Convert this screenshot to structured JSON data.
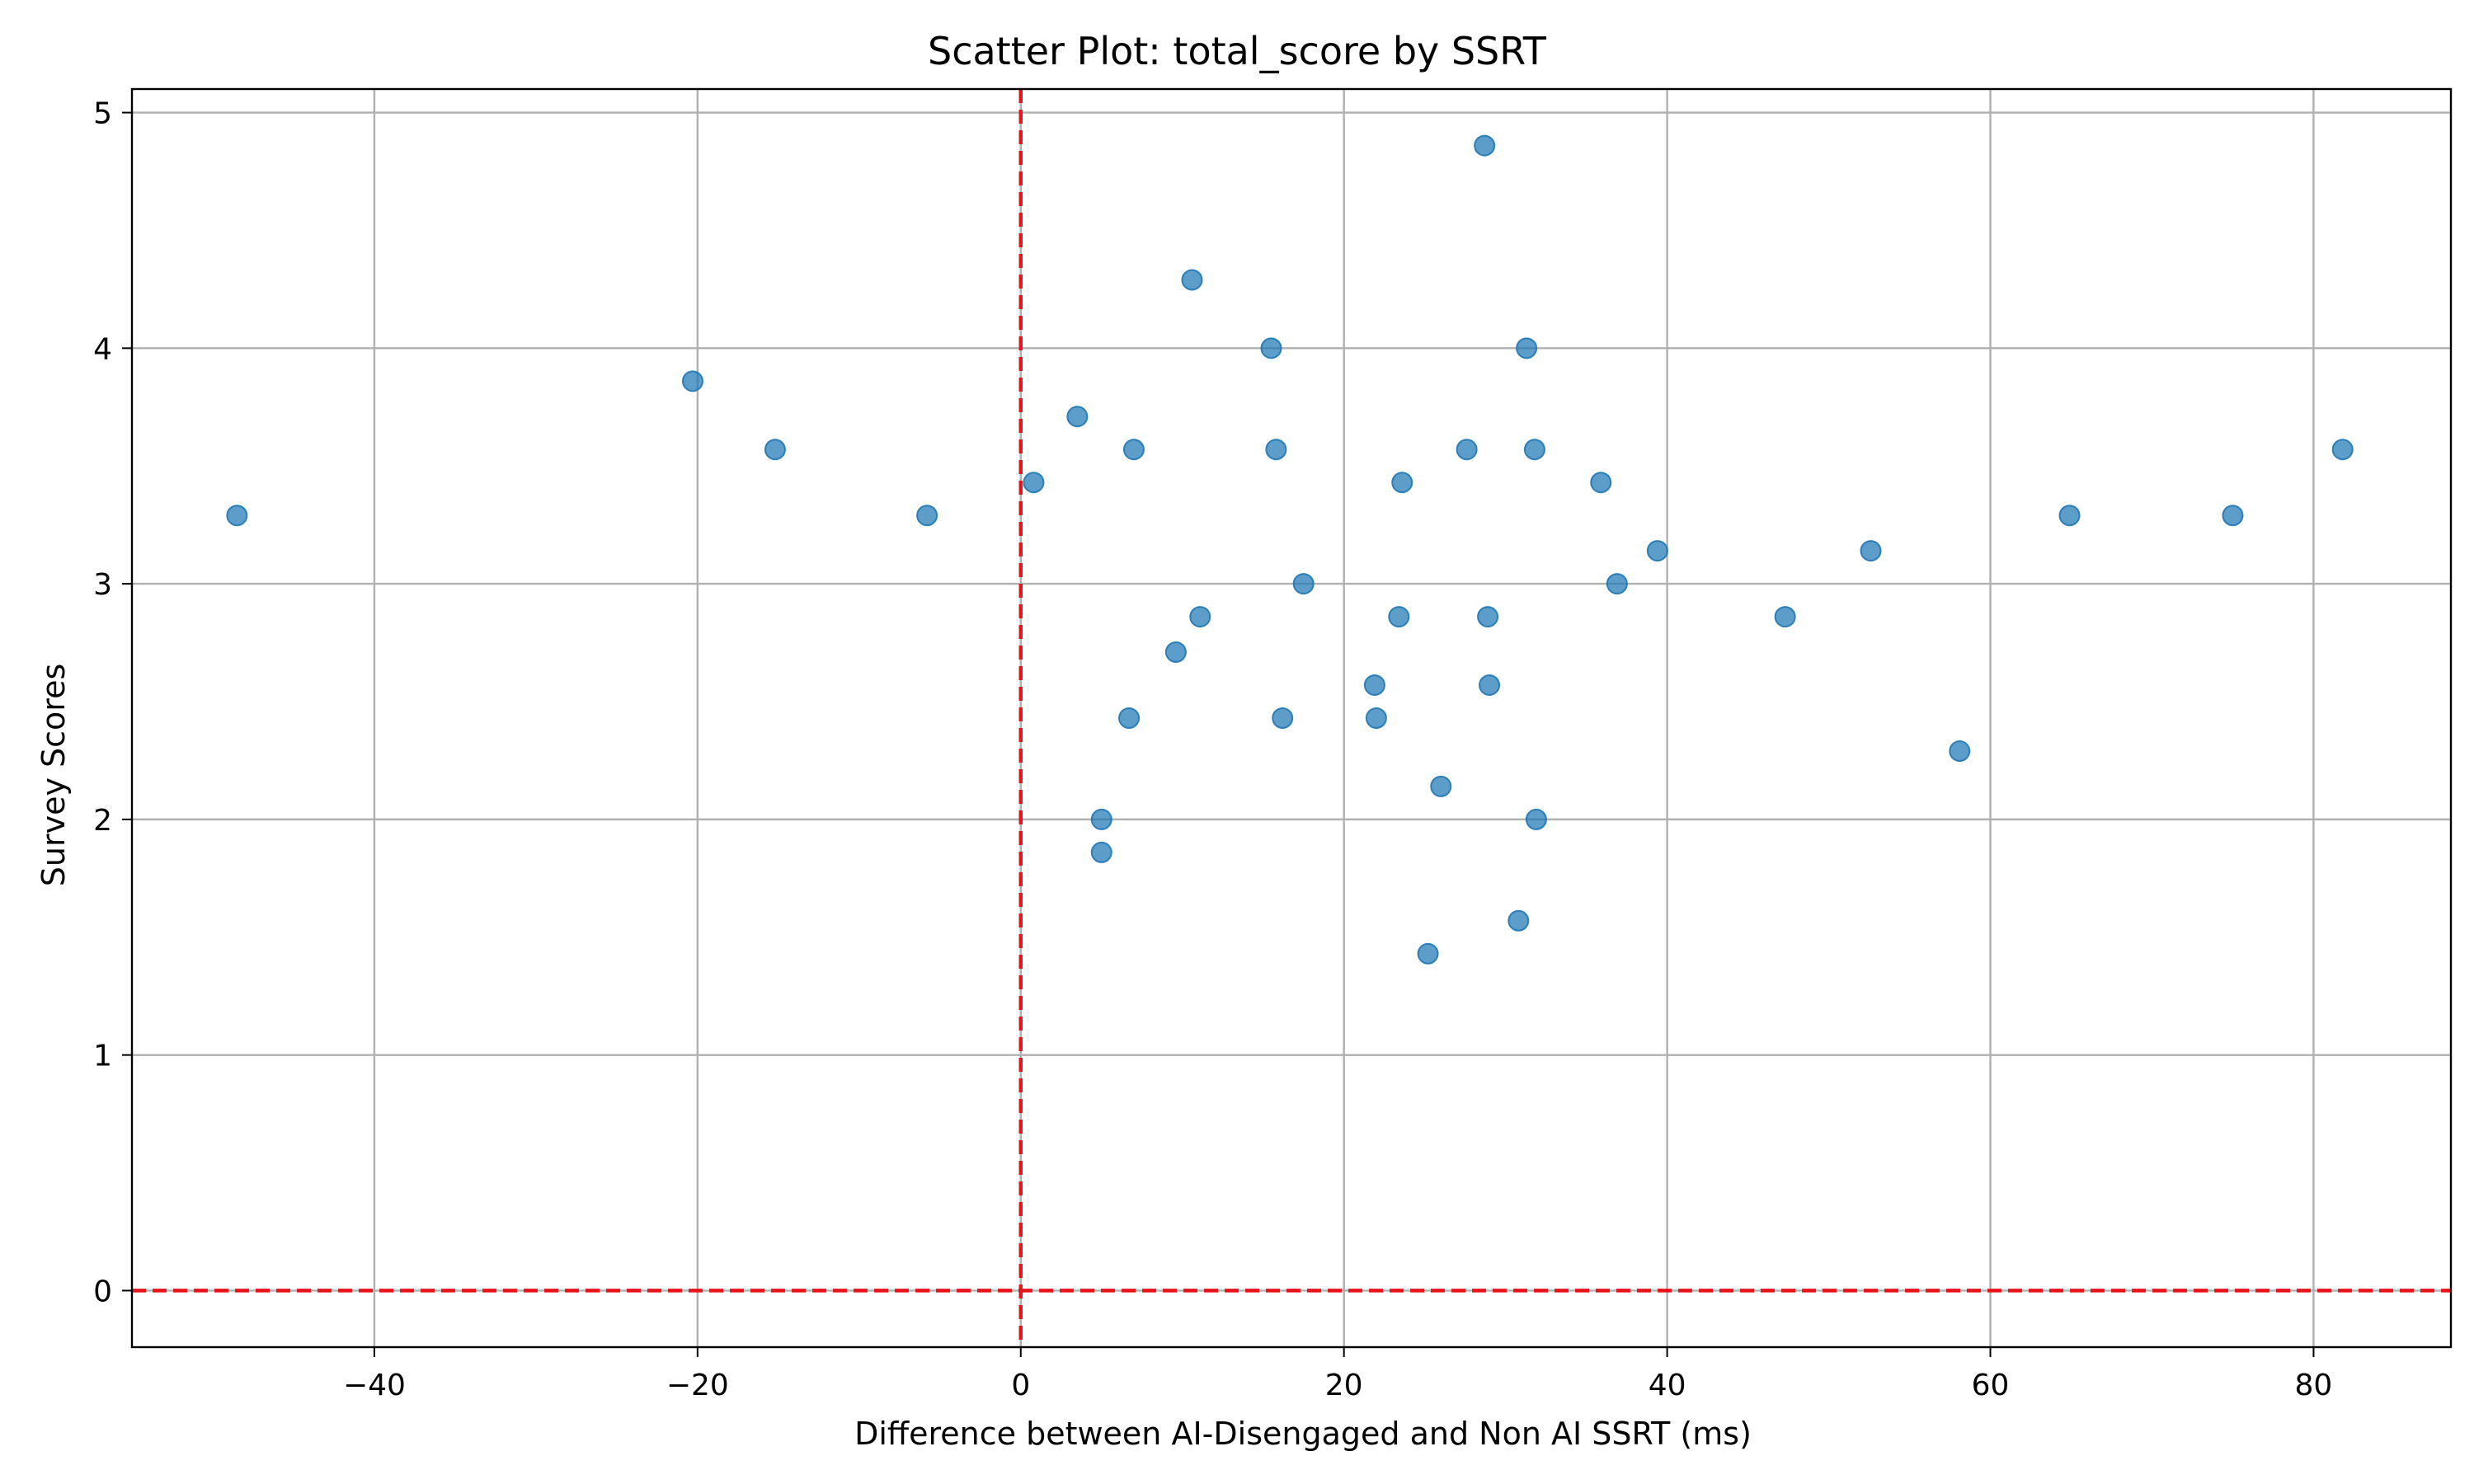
{
  "chart_data": {
    "type": "scatter",
    "title": "Scatter Plot: total_score by SSRT",
    "xlabel": "Difference between AI-Disengaged and Non AI SSRT (ms)",
    "ylabel": "Survey Scores",
    "xlim": [
      -55,
      88.5
    ],
    "ylim": [
      -0.24,
      5.1
    ],
    "xticks": [
      -40,
      -20,
      0,
      20,
      40,
      60,
      80
    ],
    "yticks": [
      0,
      1,
      2,
      3,
      4,
      5
    ],
    "grid": true,
    "reference_lines": {
      "x": 0,
      "y": 0,
      "color": "#e8141c",
      "style": "dashed"
    },
    "point_color": "#1f77b4",
    "points": [
      {
        "x": -48.5,
        "y": 3.29
      },
      {
        "x": -20.3,
        "y": 3.86
      },
      {
        "x": -15.2,
        "y": 3.57
      },
      {
        "x": -5.8,
        "y": 3.29
      },
      {
        "x": 0.8,
        "y": 3.43
      },
      {
        "x": 3.5,
        "y": 3.71
      },
      {
        "x": 5.0,
        "y": 2.0
      },
      {
        "x": 5.0,
        "y": 1.86
      },
      {
        "x": 6.7,
        "y": 2.43
      },
      {
        "x": 7.0,
        "y": 3.57
      },
      {
        "x": 9.6,
        "y": 2.71
      },
      {
        "x": 10.6,
        "y": 4.29
      },
      {
        "x": 11.1,
        "y": 2.86
      },
      {
        "x": 15.5,
        "y": 4.0
      },
      {
        "x": 15.8,
        "y": 3.57
      },
      {
        "x": 16.2,
        "y": 2.43
      },
      {
        "x": 17.5,
        "y": 3.0
      },
      {
        "x": 21.9,
        "y": 2.57
      },
      {
        "x": 22.0,
        "y": 2.43
      },
      {
        "x": 23.4,
        "y": 2.86
      },
      {
        "x": 23.6,
        "y": 3.43
      },
      {
        "x": 25.2,
        "y": 1.43
      },
      {
        "x": 26.0,
        "y": 2.14
      },
      {
        "x": 27.6,
        "y": 3.57
      },
      {
        "x": 28.7,
        "y": 4.86
      },
      {
        "x": 28.9,
        "y": 2.86
      },
      {
        "x": 29.0,
        "y": 2.57
      },
      {
        "x": 30.8,
        "y": 1.57
      },
      {
        "x": 31.3,
        "y": 4.0
      },
      {
        "x": 31.8,
        "y": 3.57
      },
      {
        "x": 31.9,
        "y": 2.0
      },
      {
        "x": 35.9,
        "y": 3.43
      },
      {
        "x": 36.9,
        "y": 3.0
      },
      {
        "x": 39.4,
        "y": 3.14
      },
      {
        "x": 47.3,
        "y": 2.86
      },
      {
        "x": 52.6,
        "y": 3.14
      },
      {
        "x": 58.1,
        "y": 2.29
      },
      {
        "x": 64.9,
        "y": 3.29
      },
      {
        "x": 75.0,
        "y": 3.29
      },
      {
        "x": 81.8,
        "y": 3.57
      }
    ]
  }
}
